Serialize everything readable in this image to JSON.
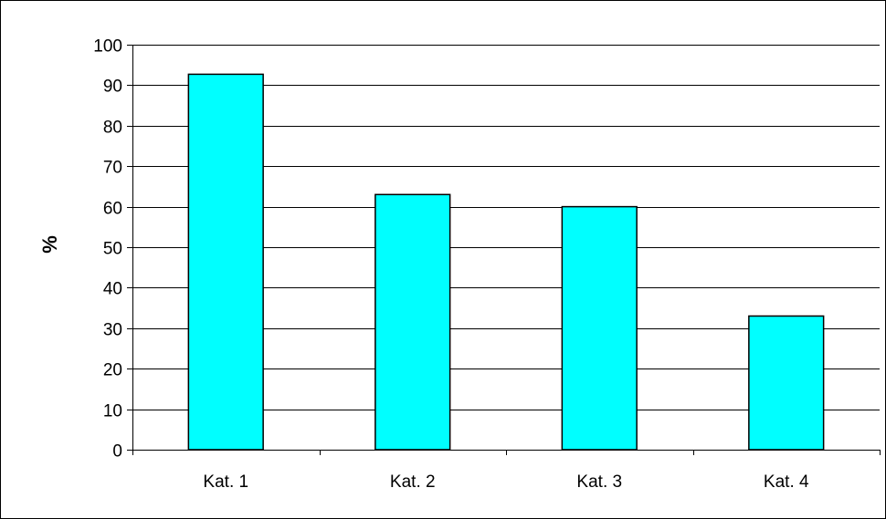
{
  "chart_data": {
    "type": "bar",
    "categories": [
      "Kat. 1",
      "Kat. 2",
      "Kat. 3",
      "Kat. 4"
    ],
    "values": [
      92.7,
      63,
      60,
      33
    ],
    "title": "",
    "xlabel": "",
    "ylabel": "%",
    "ylim": [
      0,
      100
    ],
    "yticks": [
      0,
      10,
      20,
      30,
      40,
      50,
      60,
      70,
      80,
      90,
      100
    ],
    "grid": true,
    "legend": "none",
    "colors": {
      "bar_fill": "#00FFFF",
      "bar_stroke": "#000000",
      "grid": "#000000",
      "frame": "#000000"
    }
  }
}
